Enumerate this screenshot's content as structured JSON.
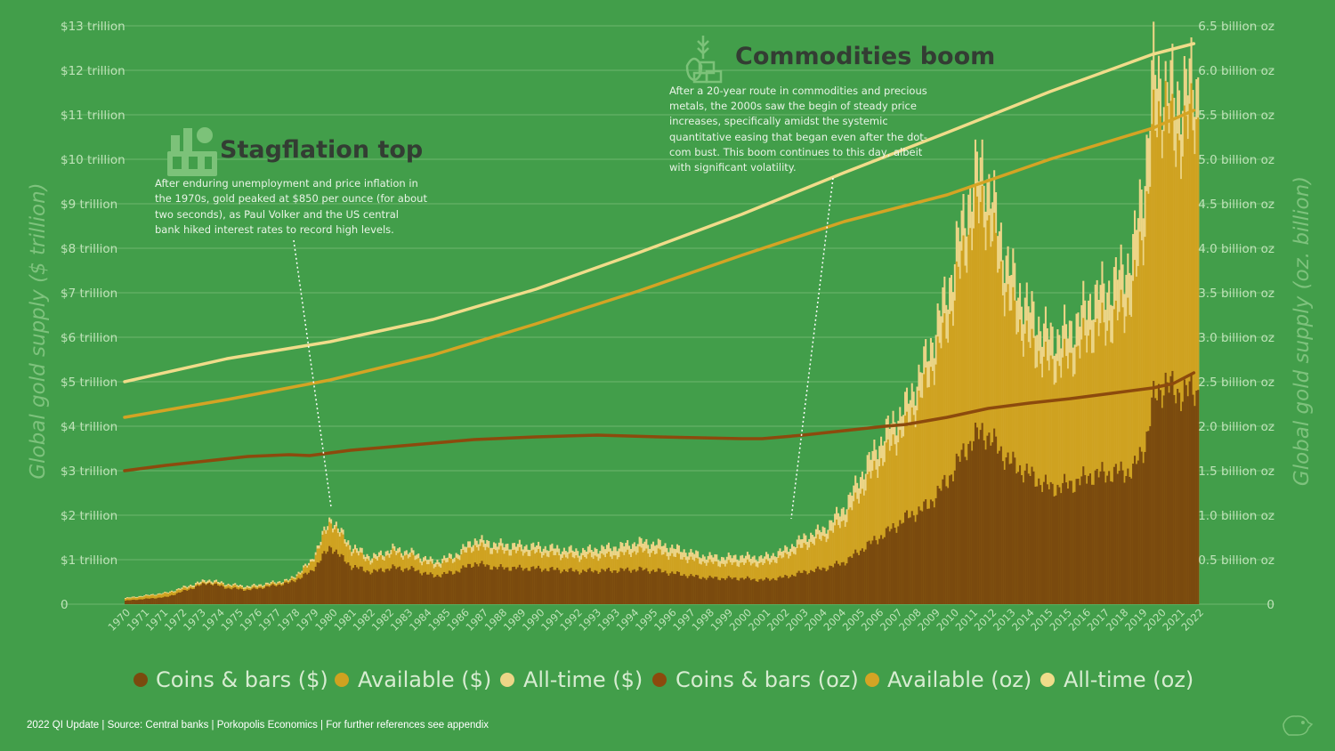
{
  "chart_data": {
    "type": "bar",
    "title": "",
    "y_left_label": "Global gold supply ($ trillion)",
    "y_right_label": "Global gold supply (oz. billion)",
    "y_left_ticks": [
      "0",
      "$1 trillion",
      "$2 trillion",
      "$3 trillion",
      "$4 trillion",
      "$5 trillion",
      "$6 trillion",
      "$7 trillion",
      "$8 trillion",
      "$9 trillion",
      "$10 trillion",
      "$11 trillion",
      "$12 trillion",
      "$13 trillion"
    ],
    "y_right_ticks": [
      "0",
      "0.5 billion oz",
      "1.0 billion oz",
      "1.5 billion oz",
      "2.0 billion oz",
      "2.5 billion oz",
      "3.0 billion oz",
      "3.5 billion oz",
      "4.0 billion oz",
      "4.5 billion oz",
      "5.0 billion oz",
      "5.5 billion oz",
      "6.0 billion oz",
      "6.5 billion oz"
    ],
    "ylim_left": [
      0,
      13
    ],
    "ylim_right": [
      0,
      6.5
    ],
    "x_ticks": [
      "1970",
      "1971",
      "1971",
      "1972",
      "1973",
      "1974",
      "1975",
      "1976",
      "1977",
      "1978",
      "1979",
      "1980",
      "1981",
      "1982",
      "1982",
      "1983",
      "1984",
      "1985",
      "1986",
      "1987",
      "1988",
      "1989",
      "1990",
      "1991",
      "1992",
      "1993",
      "1993",
      "1994",
      "1995",
      "1996",
      "1997",
      "1998",
      "1999",
      "2000",
      "2001",
      "2002",
      "2003",
      "2004",
      "2004",
      "2005",
      "2006",
      "2007",
      "2008",
      "2009",
      "2010",
      "2011",
      "2012",
      "2013",
      "2014",
      "2015",
      "2015",
      "2016",
      "2017",
      "2018",
      "2019",
      "2020",
      "2021",
      "2022"
    ],
    "series": [
      {
        "name": "Coins & bars ($)",
        "color": "#7A4A0E",
        "axis": "left",
        "kind": "bar",
        "x": [
          1970,
          1972,
          1974,
          1975,
          1976,
          1978,
          1979,
          1980,
          1980.5,
          1981,
          1982,
          1983,
          1984,
          1985,
          1986,
          1987,
          1988,
          1990,
          1992,
          1994,
          1995,
          1996,
          1998,
          1999,
          2000,
          2001,
          2002,
          2003,
          2004,
          2005,
          2006,
          2007,
          2008,
          2009,
          2010,
          2011,
          2011.7,
          2012,
          2013,
          2014,
          2015,
          2016,
          2017,
          2018,
          2019,
          2019.6,
          2020,
          2020.6,
          2021,
          2022
        ],
        "values": [
          0.08,
          0.16,
          0.48,
          0.36,
          0.32,
          0.48,
          0.72,
          1.3,
          1.05,
          0.85,
          0.72,
          0.82,
          0.78,
          0.63,
          0.72,
          0.92,
          0.82,
          0.8,
          0.74,
          0.76,
          0.78,
          0.74,
          0.6,
          0.58,
          0.58,
          0.54,
          0.6,
          0.72,
          0.8,
          0.95,
          1.3,
          1.6,
          1.95,
          2.2,
          2.8,
          3.6,
          3.9,
          3.75,
          3.2,
          2.9,
          2.6,
          2.7,
          2.9,
          2.95,
          3.0,
          3.6,
          4.6,
          5.0,
          4.75,
          4.8
        ]
      },
      {
        "name": "Available ($)",
        "color": "#CFA220",
        "axis": "left",
        "kind": "bar",
        "x": [
          1970,
          1972,
          1974,
          1975,
          1976,
          1978,
          1979,
          1980,
          1980.5,
          1981,
          1982,
          1983,
          1984,
          1985,
          1986,
          1987,
          1988,
          1990,
          1992,
          1994,
          1995,
          1996,
          1998,
          1999,
          2000,
          2001,
          2002,
          2003,
          2004,
          2005,
          2006,
          2007,
          2008,
          2009,
          2010,
          2011,
          2011.7,
          2012,
          2013,
          2014,
          2015,
          2016,
          2017,
          2018,
          2019,
          2019.6,
          2020,
          2020.6,
          2021,
          2022
        ],
        "values": [
          0.12,
          0.24,
          0.5,
          0.42,
          0.36,
          0.52,
          0.9,
          1.85,
          1.5,
          1.2,
          0.95,
          1.15,
          1.05,
          0.85,
          1.0,
          1.3,
          1.2,
          1.15,
          1.05,
          1.1,
          1.2,
          1.15,
          0.95,
          0.9,
          0.92,
          0.9,
          1.05,
          1.3,
          1.5,
          1.9,
          2.7,
          3.4,
          4.0,
          5.0,
          6.3,
          8.3,
          9.0,
          8.5,
          6.7,
          5.8,
          5.3,
          5.5,
          6.1,
          6.3,
          6.9,
          8.7,
          10.6,
          11.3,
          10.3,
          10.9
        ]
      },
      {
        "name": "All-time ($)",
        "color": "#EDD587",
        "axis": "left",
        "kind": "bar",
        "x": [
          1970,
          1972,
          1974,
          1975,
          1976,
          1978,
          1979,
          1980,
          1980.5,
          1981,
          1982,
          1983,
          1984,
          1985,
          1986,
          1987,
          1988,
          1990,
          1992,
          1994,
          1995,
          1996,
          1998,
          1999,
          2000,
          2001,
          2002,
          2003,
          2004,
          2005,
          2006,
          2007,
          2008,
          2009,
          2010,
          2011,
          2011.7,
          2012,
          2013,
          2014,
          2015,
          2016,
          2017,
          2018,
          2019,
          2019.6,
          2020,
          2020.6,
          2021,
          2022
        ],
        "values": [
          0.14,
          0.26,
          0.55,
          0.45,
          0.4,
          0.55,
          0.95,
          1.95,
          1.6,
          1.3,
          1.05,
          1.25,
          1.15,
          0.95,
          1.1,
          1.45,
          1.35,
          1.3,
          1.2,
          1.3,
          1.4,
          1.35,
          1.1,
          1.05,
          1.08,
          1.05,
          1.2,
          1.5,
          1.7,
          2.2,
          3.1,
          3.9,
          4.5,
          5.6,
          7.1,
          9.2,
          10.0,
          9.4,
          7.5,
          6.6,
          6.0,
          6.2,
          6.9,
          7.2,
          7.9,
          9.9,
          12.0,
          11.7,
          11.5,
          11.8
        ]
      },
      {
        "name": "Coins & bars (oz)",
        "color": "#8C4A0D",
        "axis": "right",
        "kind": "line",
        "x": [
          1970,
          1972,
          1974,
          1976,
          1978,
          1979,
          1980,
          1981,
          1983,
          1985,
          1987,
          1990,
          1993,
          1996,
          1998,
          2000,
          2001,
          2003,
          2005,
          2007,
          2008,
          2010,
          2012,
          2014,
          2016,
          2018,
          2020,
          2021,
          2022
        ],
        "values": [
          1.5,
          1.56,
          1.61,
          1.66,
          1.68,
          1.67,
          1.7,
          1.73,
          1.77,
          1.81,
          1.85,
          1.88,
          1.9,
          1.88,
          1.87,
          1.86,
          1.86,
          1.9,
          1.95,
          2.0,
          2.02,
          2.1,
          2.2,
          2.26,
          2.31,
          2.37,
          2.43,
          2.48,
          2.6
        ]
      },
      {
        "name": "Available (oz)",
        "color": "#D4A424",
        "axis": "right",
        "kind": "line",
        "x": [
          1970,
          1975,
          1980,
          1985,
          1990,
          1995,
          2000,
          2005,
          2010,
          2015,
          2020,
          2022
        ],
        "values": [
          2.1,
          2.3,
          2.52,
          2.8,
          3.15,
          3.52,
          3.92,
          4.3,
          4.6,
          5.0,
          5.35,
          5.55
        ]
      },
      {
        "name": "All-time (oz)",
        "color": "#F0DC8A",
        "axis": "right",
        "kind": "line",
        "x": [
          1970,
          1975,
          1980,
          1985,
          1990,
          1995,
          2000,
          2005,
          2010,
          2015,
          2020,
          2022
        ],
        "values": [
          2.5,
          2.76,
          2.95,
          3.2,
          3.54,
          3.95,
          4.38,
          4.85,
          5.3,
          5.76,
          6.18,
          6.3
        ]
      }
    ],
    "legend_position": "bottom",
    "grid": true,
    "annotations": [
      {
        "title": "Stagflation top",
        "lines": [
          "After enduring unemployment and price inflation in",
          "the 1970s, gold peaked at $850 per ounce (for about",
          "two seconds), as Paul Volker and the US central",
          "bank hiked interest rates to record high levels."
        ]
      },
      {
        "title": "Commodities boom",
        "lines": [
          "After a 20-year route in commodities and precious",
          "metals, the 2000s saw the begin of steady price",
          "increases, specifically amidst the systemic",
          "quantitative easing that began even after the dot-",
          "com bust. This boom continues to this day, albeit",
          "with significant volatility."
        ]
      }
    ],
    "source": "2022 QI Update | Source: Central banks | Porkopolis Economics | For further references see appendix"
  }
}
